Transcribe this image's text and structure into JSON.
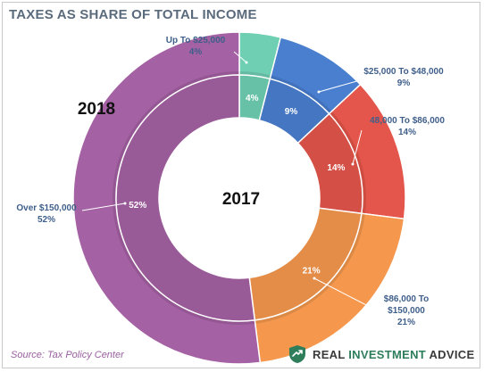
{
  "title": "TAXES AS SHARE OF TOTAL INCOME",
  "source": "Source: Tax Policy Center",
  "logo": {
    "part1": "REAL ",
    "part2": "INVESTMENT",
    "part3": " ADVICE",
    "icon": "shield-arrow-icon",
    "color": "#2e7d5b"
  },
  "chart_data": {
    "type": "pie",
    "variant": "nested-donut",
    "title": "TAXES AS SHARE OF TOTAL INCOME",
    "rings": [
      {
        "name": "2018",
        "position": "outer",
        "categories": [
          "Up To $25,000",
          "$25,000 To $48,000",
          "48,000 To $86,000",
          "$86,000 To $150,000",
          "Over $150,000"
        ],
        "values": [
          4,
          9,
          14,
          21,
          52
        ],
        "value_labels": [
          "4%",
          "9%",
          "14%",
          "21%",
          "52%"
        ]
      },
      {
        "name": "2017",
        "position": "inner",
        "categories": [
          "Up To $25,000",
          "$25,000 To $48,000",
          "48,000 To $86,000",
          "$86,000 To $150,000",
          "Over $150,000"
        ],
        "values": [
          4,
          9,
          14,
          21,
          52
        ],
        "value_labels": [
          "4%",
          "9%",
          "14%",
          "21%",
          "52%"
        ]
      }
    ],
    "colors": [
      "#6fcfb3",
      "#4a7fd0",
      "#e4554b",
      "#f5984e",
      "#a461a3"
    ]
  }
}
